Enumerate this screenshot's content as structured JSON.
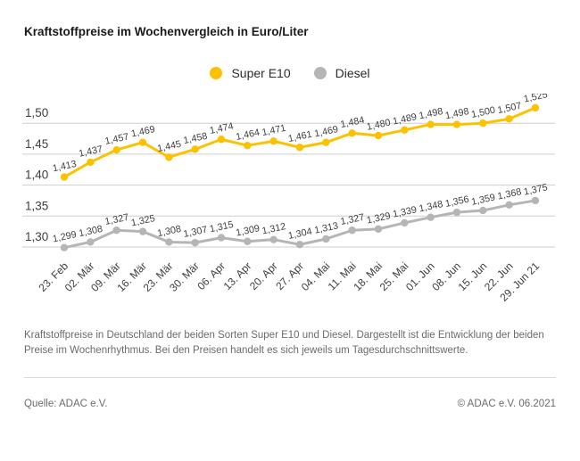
{
  "title": "Kraftstoffpreise im Wochenvergleich in Euro/Liter",
  "footnote": "Kraftstoffpreise in Deutschland der beiden Sorten Super E10 und Diesel. Dargestellt ist die Entwicklung der beiden Preise im Wochenrhythmus. Bei den Preisen handelt es sich jeweils um Tagesdurchschnittswerte.",
  "source": "Quelle: ADAC e.V.",
  "copyright": "© ADAC e.V. 06.2021",
  "colors": {
    "super_e10": "#fcc200",
    "diesel": "#b5b5b5",
    "gridline": "#cdcdcd",
    "tick_text": "#3e3e3e"
  },
  "chart_data": {
    "type": "line",
    "title": "Kraftstoffpreise im Wochenvergleich in Euro/Liter",
    "xlabel": "",
    "ylabel": "Euro/Liter",
    "grid": true,
    "legend_position": "top-center",
    "ylim": [
      1.28,
      1.545
    ],
    "yticks": [
      1.5,
      1.45,
      1.4,
      1.35,
      1.3
    ],
    "ytick_labels": [
      "1,50",
      "1,45",
      "1,40",
      "1,35",
      "1,30"
    ],
    "categories": [
      "23. Feb",
      "02. Mär",
      "09. Mär",
      "16. Mär",
      "23. Mär",
      "30. Mär",
      "06. Apr",
      "13. Apr",
      "20. Apr",
      "27. Apr",
      "04. Mai",
      "11. Mai",
      "18. Mai",
      "25. Mai",
      "01. Jun",
      "08. Jun",
      "15. Jun",
      "22. Jun",
      "29. Jun 21"
    ],
    "series": [
      {
        "name": "Super E10",
        "color": "#fcc200",
        "values": [
          1.413,
          1.437,
          1.457,
          1.469,
          1.445,
          1.458,
          1.474,
          1.464,
          1.471,
          1.461,
          1.469,
          1.484,
          1.48,
          1.489,
          1.498,
          1.498,
          1.5,
          1.507,
          1.525
        ]
      },
      {
        "name": "Diesel",
        "color": "#b5b5b5",
        "values": [
          1.299,
          1.308,
          1.327,
          1.325,
          1.308,
          1.307,
          1.315,
          1.309,
          1.312,
          1.304,
          1.313,
          1.327,
          1.329,
          1.339,
          1.348,
          1.356,
          1.359,
          1.368,
          1.375
        ]
      }
    ]
  }
}
